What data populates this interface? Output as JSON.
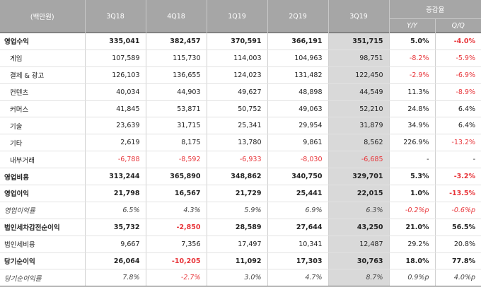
{
  "header": {
    "unit": "(백만원)",
    "periods": [
      "3Q18",
      "4Q18",
      "1Q19",
      "2Q19",
      "3Q19"
    ],
    "change_group": "증감율",
    "change_cols": [
      "Y/Y",
      "Q/Q"
    ]
  },
  "rows": [
    {
      "label": "영업수익",
      "kind": "main",
      "values": [
        "335,041",
        "382,457",
        "370,591",
        "366,191",
        "351,715"
      ],
      "yy": "5.0%",
      "qq": "-4.0%"
    },
    {
      "label": "게임",
      "kind": "sub",
      "values": [
        "107,589",
        "115,730",
        "114,003",
        "104,963",
        "98,751"
      ],
      "yy": "-8.2%",
      "qq": "-5.9%"
    },
    {
      "label": "결제 & 광고",
      "kind": "sub",
      "values": [
        "126,103",
        "136,655",
        "124,023",
        "131,482",
        "122,450"
      ],
      "yy": "-2.9%",
      "qq": "-6.9%"
    },
    {
      "label": "컨텐츠",
      "kind": "sub",
      "values": [
        "40,034",
        "44,903",
        "49,627",
        "48,898",
        "44,549"
      ],
      "yy": "11.3%",
      "qq": "-8.9%"
    },
    {
      "label": "커머스",
      "kind": "sub",
      "values": [
        "41,845",
        "53,871",
        "50,752",
        "49,063",
        "52,210"
      ],
      "yy": "24.8%",
      "qq": "6.4%"
    },
    {
      "label": "기술",
      "kind": "sub",
      "values": [
        "23,639",
        "31,715",
        "25,341",
        "29,954",
        "31,879"
      ],
      "yy": "34.9%",
      "qq": "6.4%"
    },
    {
      "label": "기타",
      "kind": "sub",
      "values": [
        "2,619",
        "8,175",
        "13,780",
        "9,861",
        "8,562"
      ],
      "yy": "226.9%",
      "qq": "-13.2%"
    },
    {
      "label": "내부거래",
      "kind": "sub",
      "values": [
        "-6,788",
        "-8,592",
        "-6,933",
        "-8,030",
        "-6,685"
      ],
      "yy": "-",
      "qq": "-"
    },
    {
      "label": "영업비용",
      "kind": "main",
      "values": [
        "313,244",
        "365,890",
        "348,862",
        "340,750",
        "329,701"
      ],
      "yy": "5.3%",
      "qq": "-3.2%"
    },
    {
      "label": "영업이익",
      "kind": "main",
      "values": [
        "21,798",
        "16,567",
        "21,729",
        "25,441",
        "22,015"
      ],
      "yy": "1.0%",
      "qq": "-13.5%"
    },
    {
      "label": "영업이익률",
      "kind": "ratio",
      "values": [
        "6.5%",
        "4.3%",
        "5.9%",
        "6.9%",
        "6.3%"
      ],
      "yy": "-0.2%p",
      "qq": "-0.6%p"
    },
    {
      "label": "법인세차감전순이익",
      "kind": "main",
      "values": [
        "35,732",
        "-2,850",
        "28,589",
        "27,644",
        "43,250"
      ],
      "yy": "21.0%",
      "qq": "56.5%"
    },
    {
      "label": "법인세비용",
      "kind": "plain",
      "values": [
        "9,667",
        "7,356",
        "17,497",
        "10,341",
        "12,487"
      ],
      "yy": "29.2%",
      "qq": "20.8%"
    },
    {
      "label": "당기순이익",
      "kind": "main",
      "values": [
        "26,064",
        "-10,205",
        "11,092",
        "17,303",
        "30,763"
      ],
      "yy": "18.0%",
      "qq": "77.8%"
    },
    {
      "label": "당기순이익률",
      "kind": "ratio",
      "values": [
        "7.8%",
        "-2.7%",
        "3.0%",
        "4.7%",
        "8.7%"
      ],
      "yy": "0.9%p",
      "qq": "4.0%p"
    }
  ]
}
